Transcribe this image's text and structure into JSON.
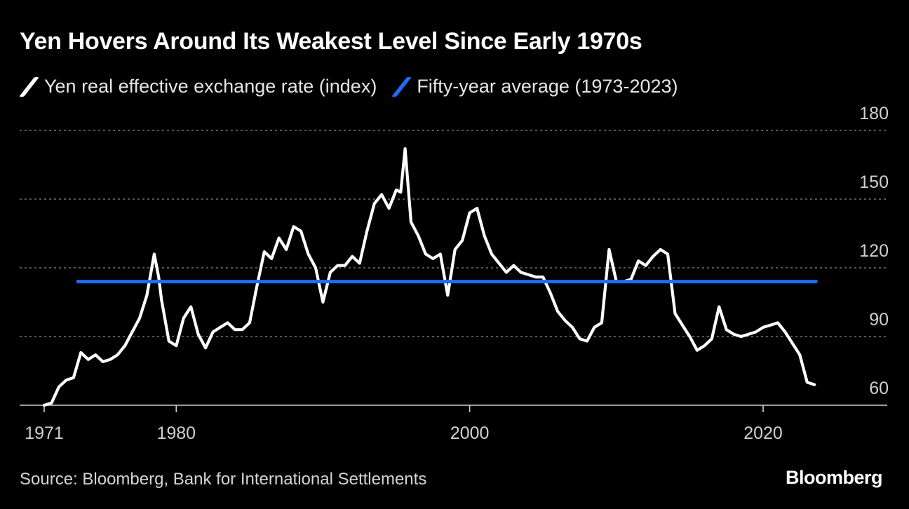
{
  "chart_data": {
    "type": "line",
    "title": "Yen Hovers Around Its Weakest Level Since Early 1970s",
    "xlabel": "",
    "ylabel": "",
    "ylim": [
      60,
      180
    ],
    "xlim": [
      1971,
      2027
    ],
    "y_ticks": [
      "60",
      "90",
      "120",
      "150",
      "180"
    ],
    "x_ticks": [
      "1971",
      "1980",
      "2000",
      "2020"
    ],
    "grid": true,
    "legend": [
      {
        "label": "Yen real effective exchange rate (index)",
        "color": "#ffffff"
      },
      {
        "label": "Fifty-year average (1973-2023)",
        "color": "#1a6dff"
      }
    ],
    "series": [
      {
        "name": "Yen real effective exchange rate (index)",
        "color": "#ffffff",
        "x": [
          1971.0,
          1971.5,
          1972.0,
          1972.5,
          1973.0,
          1973.5,
          1974.0,
          1974.5,
          1975.0,
          1975.5,
          1976.0,
          1976.5,
          1977.0,
          1977.5,
          1978.0,
          1978.5,
          1978.8,
          1979.0,
          1979.5,
          1980.0,
          1980.5,
          1981.0,
          1981.5,
          1982.0,
          1982.5,
          1983.0,
          1983.5,
          1984.0,
          1984.5,
          1985.0,
          1985.5,
          1986.0,
          1986.5,
          1987.0,
          1987.5,
          1988.0,
          1988.5,
          1989.0,
          1989.5,
          1990.0,
          1990.5,
          1991.0,
          1991.5,
          1992.0,
          1992.5,
          1993.0,
          1993.5,
          1994.0,
          1994.5,
          1995.0,
          1995.3,
          1995.6,
          1996.0,
          1996.5,
          1997.0,
          1997.5,
          1998.0,
          1998.5,
          1999.0,
          1999.5,
          2000.0,
          2000.5,
          2001.0,
          2001.5,
          2002.0,
          2002.5,
          2003.0,
          2003.5,
          2004.0,
          2004.5,
          2005.0,
          2005.5,
          2006.0,
          2006.5,
          2007.0,
          2007.5,
          2008.0,
          2008.5,
          2009.0,
          2009.5,
          2010.0,
          2010.5,
          2011.0,
          2011.5,
          2012.0,
          2012.5,
          2013.0,
          2013.5,
          2014.0,
          2014.5,
          2015.0,
          2015.5,
          2016.0,
          2016.5,
          2017.0,
          2017.5,
          2018.0,
          2018.5,
          2019.0,
          2019.5,
          2020.0,
          2020.5,
          2021.0,
          2021.5,
          2022.0,
          2022.5,
          2023.0,
          2023.5
        ],
        "values": [
          60,
          61,
          68,
          71,
          72,
          83,
          80,
          82,
          79,
          80,
          82,
          86,
          92,
          98,
          108,
          126,
          116,
          106,
          88,
          86,
          98,
          103,
          91,
          85,
          92,
          94,
          96,
          93,
          93,
          96,
          112,
          127,
          124,
          133,
          128,
          138,
          136,
          126,
          120,
          105,
          118,
          121,
          121,
          125,
          122,
          136,
          148,
          152,
          146,
          154,
          153,
          172,
          140,
          134,
          126,
          124,
          126,
          108,
          128,
          132,
          144,
          146,
          134,
          126,
          122,
          118,
          121,
          118,
          117,
          116,
          116,
          109,
          101,
          97,
          94,
          89,
          88,
          94,
          96,
          128,
          114,
          114,
          115,
          123,
          121,
          125,
          128,
          126,
          100,
          95,
          90,
          84,
          86,
          89,
          103,
          93,
          91,
          90,
          91,
          92,
          94,
          95,
          96,
          92,
          87,
          82,
          70,
          69
        ]
      },
      {
        "name": "Fifty-year average (1973-2023)",
        "color": "#1a6dff",
        "x": [
          1973.3,
          2023.6
        ],
        "values": [
          114,
          114
        ]
      }
    ]
  },
  "footer": {
    "source": "Source: Bloomberg, Bank for International Settlements",
    "brand": "Bloomberg"
  }
}
